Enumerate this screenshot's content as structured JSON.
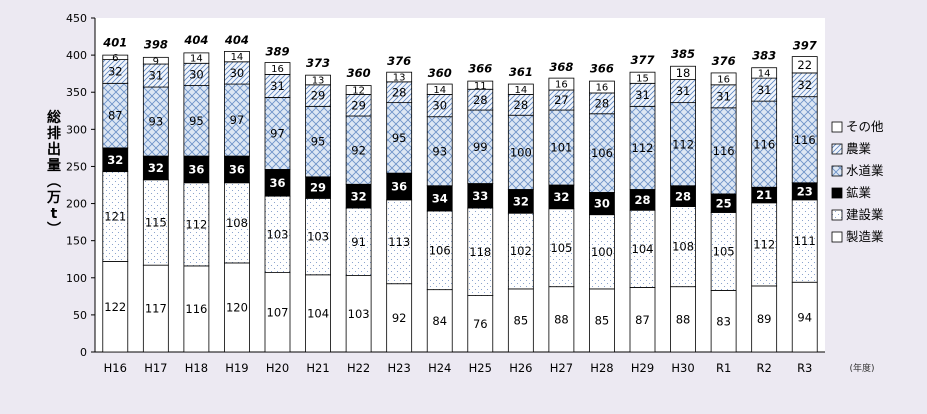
{
  "chart_data": {
    "type": "bar",
    "stacked": true,
    "ylabel": "総排出量(万t)",
    "x_unit_label": "(年度)",
    "ylim": [
      0,
      450
    ],
    "yticks": [
      0,
      50,
      100,
      150,
      200,
      250,
      300,
      350,
      400,
      450
    ],
    "categories": [
      "H16",
      "H17",
      "H18",
      "H19",
      "H20",
      "H21",
      "H22",
      "H23",
      "H24",
      "H25",
      "H26",
      "H27",
      "H28",
      "H29",
      "H30",
      "R1",
      "R2",
      "R3"
    ],
    "totals": [
      401,
      398,
      404,
      404,
      389,
      373,
      360,
      376,
      360,
      366,
      361,
      368,
      366,
      377,
      385,
      376,
      383,
      397
    ],
    "legend_position": "right",
    "series": [
      {
        "name": "製造業",
        "key": "seizo",
        "values": [
          122,
          117,
          116,
          120,
          107,
          104,
          103,
          92,
          84,
          76,
          85,
          88,
          85,
          87,
          88,
          83,
          89,
          94
        ]
      },
      {
        "name": "建設業",
        "key": "kensetsu",
        "values": [
          121,
          115,
          112,
          108,
          103,
          103,
          91,
          113,
          106,
          118,
          102,
          105,
          100,
          104,
          108,
          105,
          112,
          111
        ]
      },
      {
        "name": "鉱業",
        "key": "kogyo",
        "values": [
          32,
          32,
          36,
          36,
          36,
          29,
          32,
          36,
          34,
          33,
          32,
          32,
          30,
          28,
          28,
          25,
          21,
          23
        ]
      },
      {
        "name": "水道業",
        "key": "suido",
        "values": [
          87,
          93,
          95,
          97,
          97,
          95,
          92,
          95,
          93,
          99,
          100,
          101,
          106,
          112,
          112,
          116,
          116,
          116
        ]
      },
      {
        "name": "農業",
        "key": "nogyo",
        "values": [
          32,
          31,
          30,
          30,
          31,
          29,
          29,
          28,
          30,
          28,
          28,
          27,
          28,
          31,
          31,
          31,
          31,
          32
        ]
      },
      {
        "name": "その他",
        "key": "sonota",
        "values": [
          6,
          9,
          14,
          14,
          16,
          13,
          12,
          13,
          14,
          11,
          14,
          16,
          16,
          15,
          18,
          16,
          14,
          22
        ]
      }
    ]
  }
}
